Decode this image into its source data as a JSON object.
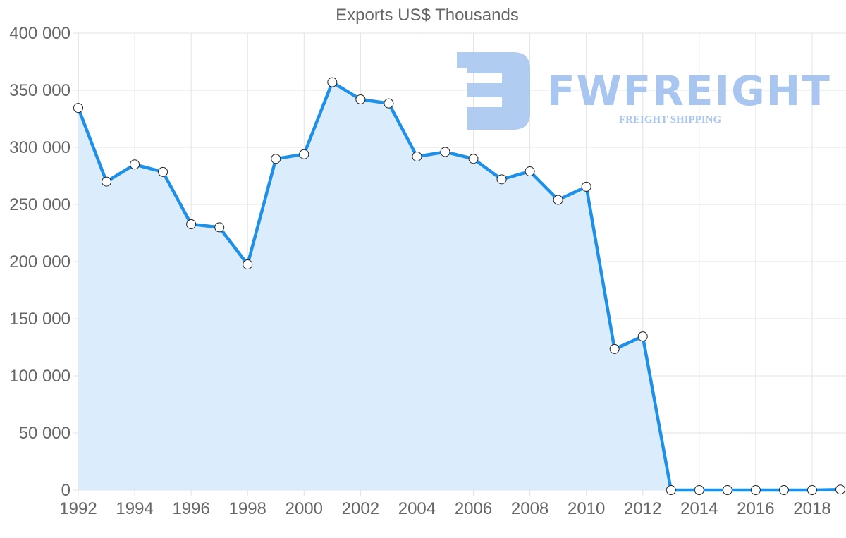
{
  "chart_data": {
    "type": "area",
    "title": "Exports US$ Thousands",
    "xlabel": "",
    "ylabel": "",
    "x": [
      1992,
      1993,
      1994,
      1995,
      1996,
      1997,
      1998,
      1999,
      2000,
      2001,
      2002,
      2003,
      2004,
      2005,
      2006,
      2007,
      2008,
      2009,
      2010,
      2011,
      2012,
      2013,
      2014,
      2015,
      2016,
      2017,
      2018,
      2019
    ],
    "series": [
      {
        "name": "Exports US$ Thousands",
        "values": [
          334500,
          270000,
          285000,
          278500,
          232700,
          230000,
          197500,
          290000,
          294000,
          357000,
          342000,
          338500,
          292000,
          296000,
          290000,
          272000,
          279000,
          254000,
          265500,
          123500,
          134500,
          0,
          0,
          0,
          0,
          0,
          0,
          500
        ],
        "color": "#1e90e8",
        "fill": "#d9ecfc"
      }
    ],
    "ylim": [
      0,
      400000
    ],
    "yticks": [
      0,
      50000,
      100000,
      150000,
      200000,
      250000,
      300000,
      350000,
      400000
    ],
    "ytick_labels": [
      "0",
      "50 000",
      "100 000",
      "150 000",
      "200 000",
      "250 000",
      "300 000",
      "350 000",
      "400 000"
    ],
    "xtick_labels": [
      "1992",
      "1994",
      "1996",
      "1998",
      "2000",
      "2002",
      "2004",
      "2006",
      "2008",
      "2010",
      "2012",
      "2014",
      "2016",
      "2018"
    ],
    "grid": true,
    "legend": null
  },
  "watermark": {
    "brand": "FWFREIGHT",
    "tagline": "FREIGHT SHIPPING"
  }
}
